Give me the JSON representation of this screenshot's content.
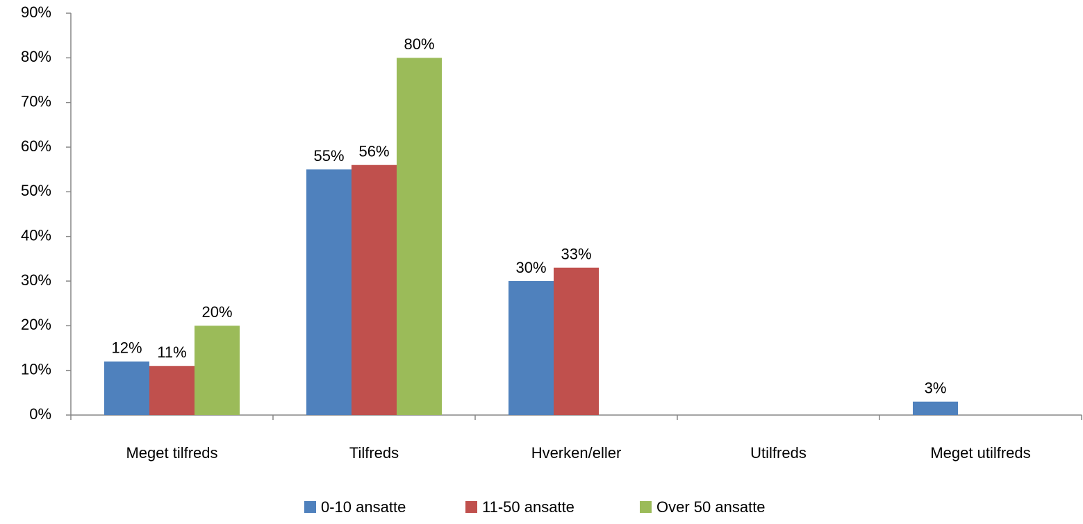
{
  "chart_data": {
    "type": "bar",
    "title": "",
    "xlabel": "",
    "ylabel": "",
    "categories": [
      "Meget tilfreds",
      "Tilfreds",
      "Hverken/eller",
      "Utilfreds",
      "Meget utilfreds"
    ],
    "series": [
      {
        "name": "0-10 ansatte",
        "color": "#4F81BD",
        "values": [
          12,
          55,
          30,
          null,
          3
        ],
        "labels": [
          "12%",
          "55%",
          "30%",
          "",
          "3%"
        ]
      },
      {
        "name": "11-50 ansatte",
        "color": "#C0504D",
        "values": [
          11,
          56,
          33,
          null,
          null
        ],
        "labels": [
          "11%",
          "56%",
          "33%",
          "",
          ""
        ]
      },
      {
        "name": "Over 50 ansatte",
        "color": "#9BBB59",
        "values": [
          20,
          80,
          null,
          null,
          null
        ],
        "labels": [
          "20%",
          "80%",
          "",
          "",
          ""
        ]
      }
    ],
    "ylim": [
      0,
      90
    ],
    "yticks": [
      0,
      10,
      20,
      30,
      40,
      50,
      60,
      70,
      80,
      90
    ],
    "ytick_labels": [
      "0%",
      "10%",
      "20%",
      "30%",
      "40%",
      "50%",
      "60%",
      "70%",
      "80%",
      "90%"
    ],
    "grid": false,
    "legend_position": "bottom"
  }
}
